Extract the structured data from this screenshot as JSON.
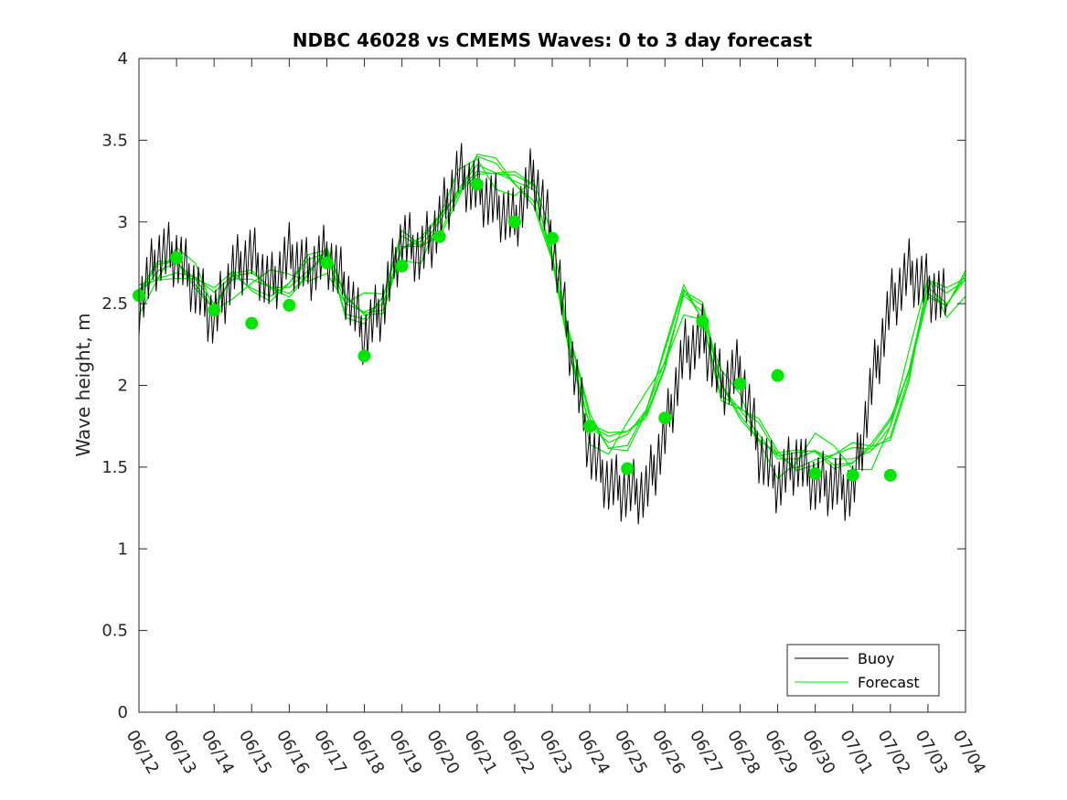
{
  "chart_data": {
    "type": "line",
    "title": "NDBC 46028 vs CMEMS Waves: 0 to 3 day forecast",
    "xlabel": "",
    "ylabel": "Wave height, m",
    "xlim": [
      "06/12",
      "07/04"
    ],
    "ylim": [
      0,
      4
    ],
    "x_tick_labels": [
      "06/12",
      "06/13",
      "06/14",
      "06/15",
      "06/16",
      "06/17",
      "06/18",
      "06/19",
      "06/20",
      "06/21",
      "06/22",
      "06/23",
      "06/24",
      "06/25",
      "06/26",
      "06/27",
      "06/28",
      "06/29",
      "06/30",
      "07/01",
      "07/02",
      "07/03",
      "07/04"
    ],
    "y_ticks": [
      0,
      0.5,
      1,
      1.5,
      2,
      2.5,
      3,
      3.5,
      4
    ],
    "y_tick_labels": [
      "0",
      "0.5",
      "1",
      "1.5",
      "2",
      "2.5",
      "3",
      "3.5",
      "4"
    ],
    "grid": false,
    "legend_position": "bottom-right",
    "legend": [
      "Buoy",
      "Forecast"
    ],
    "colors": {
      "buoy": "#000000",
      "forecast": "#00e600",
      "markers": "#00e600"
    },
    "series": [
      {
        "name": "Buoy",
        "x": [
          0,
          0.5,
          1,
          1.5,
          2,
          2.5,
          3,
          3.5,
          4,
          4.5,
          5,
          5.5,
          6,
          6.5,
          7,
          7.5,
          8,
          8.5,
          9,
          9.5,
          10,
          10.5,
          11,
          11.5,
          12,
          12.5,
          13,
          13.5,
          14,
          14.5,
          15,
          15.5,
          16,
          16.5,
          17,
          17.5,
          18,
          18.5,
          19,
          19.5,
          20,
          20.5,
          21,
          21.5
        ],
        "y": [
          2.5,
          2.8,
          2.8,
          2.6,
          2.4,
          2.7,
          2.8,
          2.6,
          2.8,
          2.7,
          2.8,
          2.6,
          2.3,
          2.5,
          2.9,
          2.8,
          3.0,
          3.3,
          3.2,
          3.1,
          3.0,
          3.3,
          2.9,
          2.2,
          1.6,
          1.4,
          1.35,
          1.35,
          1.7,
          2.2,
          2.3,
          2.0,
          2.1,
          1.6,
          1.4,
          1.55,
          1.4,
          1.4,
          1.35,
          2.0,
          2.5,
          2.7,
          2.6,
          2.5
        ]
      },
      {
        "name": "Forecast",
        "x": [
          0,
          0.5,
          1,
          1.5,
          2,
          2.5,
          3,
          3.5,
          4,
          4.5,
          5,
          5.5,
          6,
          6.5,
          7,
          7.5,
          8,
          8.5,
          9,
          9.5,
          10,
          10.5,
          11,
          11.5,
          12,
          12.5,
          13,
          13.5,
          14,
          14.5,
          15,
          15.5,
          16,
          16.5,
          17,
          17.5,
          18,
          18.5,
          19,
          19.5,
          20,
          20.5,
          21,
          21.5,
          22
        ],
        "y": [
          2.55,
          2.7,
          2.75,
          2.65,
          2.5,
          2.65,
          2.65,
          2.6,
          2.6,
          2.7,
          2.8,
          2.5,
          2.45,
          2.5,
          2.85,
          2.85,
          3.0,
          3.2,
          3.35,
          3.3,
          3.25,
          3.2,
          2.8,
          2.2,
          1.75,
          1.65,
          1.7,
          1.85,
          2.15,
          2.55,
          2.45,
          2.0,
          1.85,
          1.7,
          1.55,
          1.55,
          1.6,
          1.55,
          1.55,
          1.6,
          1.75,
          2.1,
          2.6,
          2.5,
          2.65
        ]
      }
    ],
    "daily_markers": {
      "x": [
        0,
        1,
        2,
        3,
        4,
        5,
        6,
        7,
        8,
        9,
        10,
        11,
        12,
        13,
        14,
        15,
        16,
        17,
        18,
        19,
        20
      ],
      "y": [
        2.55,
        2.78,
        2.46,
        2.38,
        2.49,
        2.75,
        2.18,
        2.73,
        2.91,
        3.23,
        3.0,
        2.9,
        1.75,
        1.49,
        1.8,
        2.39,
        2.01,
        2.06,
        1.46,
        1.45,
        1.45
      ]
    }
  }
}
